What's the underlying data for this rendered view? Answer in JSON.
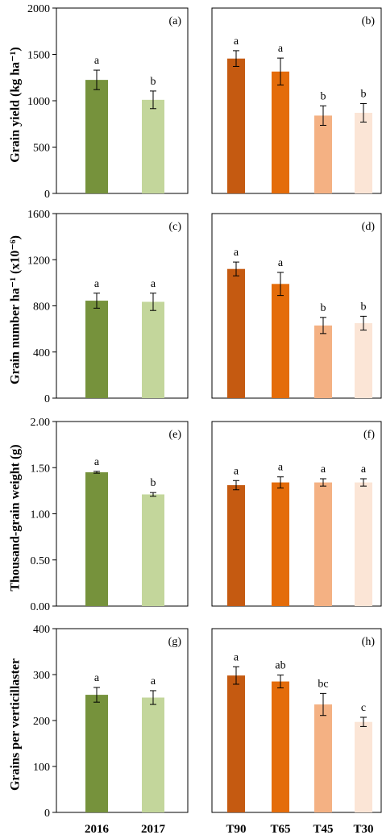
{
  "chart_data": [
    {
      "type": "bar",
      "panel": "(a)",
      "ylabel": "Grain yield (kg ha⁻¹)",
      "ylim": [
        0,
        2000
      ],
      "yticks": [
        "0",
        "500",
        "1000",
        "1500",
        "2000"
      ],
      "yticks_values": [
        0,
        500,
        1000,
        1500,
        2000
      ],
      "categories": [
        "2016",
        "2017"
      ],
      "values": [
        1225,
        1010
      ],
      "errors": [
        105,
        95
      ],
      "letters": [
        "a",
        "b"
      ],
      "colors": [
        "#76923c",
        "#c3d69b"
      ]
    },
    {
      "type": "bar",
      "panel": "(b)",
      "ylim": [
        0,
        2000
      ],
      "categories": [
        "T90",
        "T65",
        "T45",
        "T30"
      ],
      "values": [
        1455,
        1315,
        840,
        870
      ],
      "errors": [
        85,
        145,
        105,
        100
      ],
      "letters": [
        "a",
        "a",
        "b",
        "b"
      ],
      "colors": [
        "#c55a11",
        "#e46c0a",
        "#f4b183",
        "#fbe5d6"
      ]
    },
    {
      "type": "bar",
      "panel": "(c)",
      "ylabel": "Grain number ha⁻¹ (x10⁻⁶)",
      "ylim": [
        0,
        1600
      ],
      "yticks": [
        "0",
        "400",
        "800",
        "1200",
        "1600"
      ],
      "yticks_values": [
        0,
        400,
        800,
        1200,
        1600
      ],
      "categories": [
        "2016",
        "2017"
      ],
      "values": [
        845,
        835
      ],
      "errors": [
        65,
        75
      ],
      "letters": [
        "a",
        "a"
      ],
      "colors": [
        "#76923c",
        "#c3d69b"
      ]
    },
    {
      "type": "bar",
      "panel": "(d)",
      "ylim": [
        0,
        1600
      ],
      "categories": [
        "T90",
        "T65",
        "T45",
        "T30"
      ],
      "values": [
        1120,
        990,
        630,
        650
      ],
      "errors": [
        60,
        100,
        70,
        60
      ],
      "letters": [
        "a",
        "a",
        "b",
        "b"
      ],
      "colors": [
        "#c55a11",
        "#e46c0a",
        "#f4b183",
        "#fbe5d6"
      ]
    },
    {
      "type": "bar",
      "panel": "(e)",
      "ylabel": "Thousand-grain weight (g)",
      "ylim": [
        0,
        2
      ],
      "yticks": [
        "0.00",
        "0.50",
        "1.00",
        "1.50",
        "2.00"
      ],
      "yticks_values": [
        0,
        0.5,
        1,
        1.5,
        2
      ],
      "categories": [
        "2016",
        "2017"
      ],
      "values": [
        1.45,
        1.21
      ],
      "errors": [
        0.01,
        0.02
      ],
      "letters": [
        "a",
        "b"
      ],
      "colors": [
        "#76923c",
        "#c3d69b"
      ]
    },
    {
      "type": "bar",
      "panel": "(f)",
      "ylim": [
        0,
        2
      ],
      "categories": [
        "T90",
        "T65",
        "T45",
        "T30"
      ],
      "values": [
        1.31,
        1.34,
        1.34,
        1.34
      ],
      "errors": [
        0.05,
        0.06,
        0.04,
        0.04
      ],
      "letters": [
        "a",
        "a",
        "a",
        "a"
      ],
      "colors": [
        "#c55a11",
        "#e46c0a",
        "#f4b183",
        "#fbe5d6"
      ]
    },
    {
      "type": "bar",
      "panel": "(g)",
      "ylabel": "Grains per verticillaster",
      "ylim": [
        0,
        400
      ],
      "yticks": [
        "0",
        "100",
        "200",
        "300",
        "400"
      ],
      "yticks_values": [
        0,
        100,
        200,
        300,
        400
      ],
      "categories": [
        "2016",
        "2017"
      ],
      "values": [
        256,
        250
      ],
      "errors": [
        16,
        15
      ],
      "letters": [
        "a",
        "a"
      ],
      "colors": [
        "#76923c",
        "#c3d69b"
      ]
    },
    {
      "type": "bar",
      "panel": "(h)",
      "ylim": [
        0,
        400
      ],
      "categories": [
        "T90",
        "T65",
        "T45",
        "T30"
      ],
      "values": [
        298,
        285,
        235,
        197
      ],
      "errors": [
        19,
        14,
        24,
        10
      ],
      "letters": [
        "a",
        "ab",
        "bc",
        "c"
      ],
      "colors": [
        "#c55a11",
        "#e46c0a",
        "#f4b183",
        "#fbe5d6"
      ]
    }
  ]
}
